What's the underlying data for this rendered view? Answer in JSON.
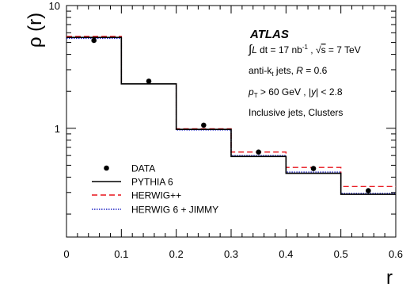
{
  "chart_data": {
    "type": "line",
    "x_edges": [
      0,
      0.1,
      0.2,
      0.3,
      0.4,
      0.5,
      0.6
    ],
    "xlabel": "r",
    "ylabel": "ρ (r)",
    "xlim": [
      0,
      0.6
    ],
    "ylim": [
      0.13,
      10
    ],
    "yscale": "log",
    "x_tick_labels": [
      "0",
      "0.1",
      "0.2",
      "0.3",
      "0.4",
      "0.5",
      "0.6"
    ],
    "y_tick_labels": [
      "1",
      "10"
    ],
    "series": [
      {
        "name": "DATA",
        "style": "points",
        "color": "#000000",
        "x": [
          0.05,
          0.15,
          0.25,
          0.35,
          0.45,
          0.55
        ],
        "values": [
          5.2,
          2.42,
          1.06,
          0.64,
          0.47,
          0.31
        ]
      },
      {
        "name": "PYTHIA 6",
        "style": "solid",
        "color": "#000000",
        "values": [
          5.5,
          2.3,
          0.98,
          0.59,
          0.43,
          0.29
        ]
      },
      {
        "name": "HERWIG++",
        "style": "dashed",
        "color": "#e8141c",
        "values": [
          5.6,
          2.3,
          0.99,
          0.64,
          0.48,
          0.335
        ]
      },
      {
        "name": "HERWIG 6 + JIMMY",
        "style": "dotted",
        "color": "#1f24c4",
        "values": [
          5.4,
          2.3,
          0.97,
          0.6,
          0.44,
          0.295
        ]
      }
    ],
    "annotations": {
      "experiment": "ATLAS",
      "lumi_prefix": "∫",
      "lumi_L": "L",
      "lumi_dt": " dt = 17 nb",
      "lumi_exp": "-1",
      "lumi_sep": " , ",
      "sqrt_symbol": "√",
      "sqrt_s": "s",
      "energy": " = 7 TeV",
      "algo": "anti-k",
      "algo_sub": "t",
      "algo_rest": " jets, ",
      "algo_R": "R",
      "algo_val": " = 0.6",
      "pt_p": "p",
      "pt_sub": "T",
      "pt_rest": " > 60 GeV , |",
      "pt_y": "y",
      "pt_end": "| < 2.8",
      "selection": "Inclusive jets, Clusters"
    },
    "legend_position": "bottom-left",
    "grid": false
  }
}
